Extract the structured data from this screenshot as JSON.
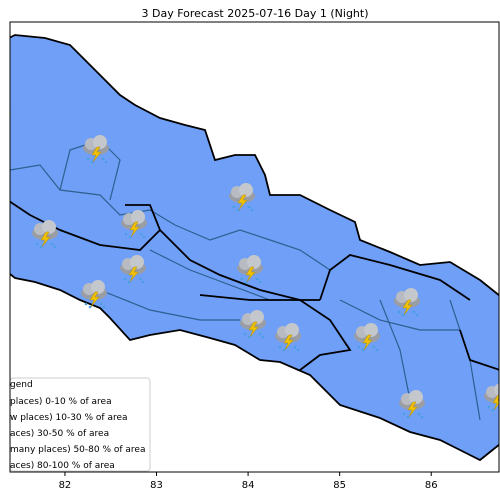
{
  "map": {
    "title": "3 Day Forecast 2025-07-16 Day 1 (Night)",
    "xlim": [
      81.4,
      86.74
    ],
    "xticks": [
      82,
      83,
      84,
      85,
      86
    ],
    "legend": {
      "title": "gend",
      "entries": [
        "places)  0-10 % of area",
        "w places) 10-30 % of area",
        "aces) 30-50  % of area",
        "many places) 50-80 % of area",
        "aces) 80-100 % of area"
      ]
    }
  }
}
